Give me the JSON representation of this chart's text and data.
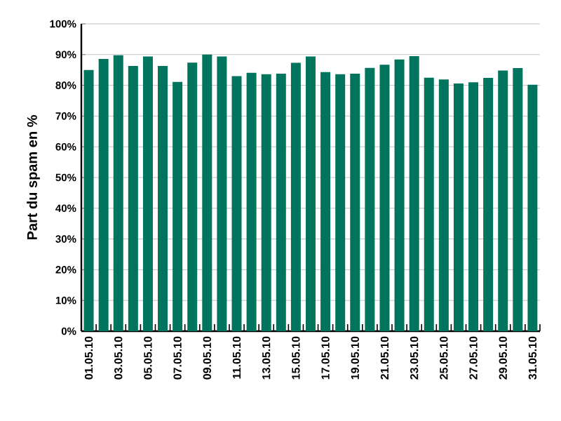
{
  "chart_data": {
    "type": "bar",
    "ylabel": "Part du spam en %",
    "categories": [
      "01.05.10",
      null,
      "03.05.10",
      null,
      "05.05.10",
      null,
      "07.05.10",
      null,
      "09.05.10",
      null,
      "11.05.10",
      null,
      "13.05.10",
      null,
      "15.05.10",
      null,
      "17.05.10",
      null,
      "19.05.10",
      null,
      "21.05.10",
      null,
      "23.05.10",
      null,
      "25.05.10",
      null,
      "27.05.10",
      null,
      "29.05.10",
      null,
      "31.05.10"
    ],
    "values": [
      85,
      88.6,
      89.8,
      86.3,
      89.4,
      86.3,
      81.1,
      87.4,
      90,
      89.4,
      83,
      84.1,
      83.6,
      83.8,
      87.3,
      89.4,
      84.3,
      83.6,
      83.8,
      85.7,
      86.7,
      88.4,
      89.5,
      82.5,
      81.9,
      80.6,
      81,
      82.4,
      84.8,
      85.6,
      80.2
    ],
    "color": "#00745c",
    "ylim": [
      0,
      100
    ],
    "yticks": [
      {
        "value": 0,
        "label": "0%"
      },
      {
        "value": 10,
        "label": "10%"
      },
      {
        "value": 20,
        "label": "20%"
      },
      {
        "value": 30,
        "label": "30%"
      },
      {
        "value": 40,
        "label": "40%"
      },
      {
        "value": 50,
        "label": "50%"
      },
      {
        "value": 60,
        "label": "60%"
      },
      {
        "value": 70,
        "label": "70%"
      },
      {
        "value": 80,
        "label": "80%"
      },
      {
        "value": 90,
        "label": "90%"
      },
      {
        "value": 100,
        "label": "100%"
      }
    ],
    "grid": "y"
  }
}
